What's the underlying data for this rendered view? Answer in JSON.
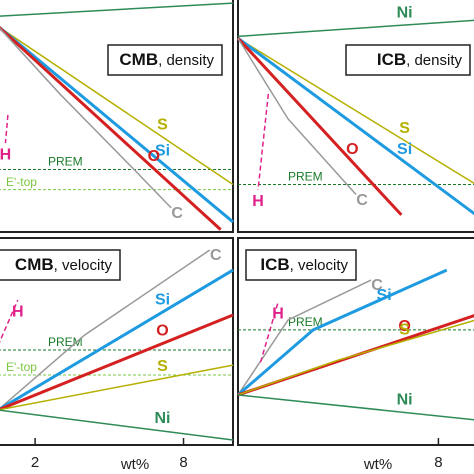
{
  "chart_data": [
    {
      "type": "line",
      "title_main": "CMB",
      "title_rest": ", density",
      "xlim": [
        0.5,
        10
      ],
      "ylim": [
        0,
        100
      ],
      "series": [
        {
          "name": "Ni",
          "color": "#2e8b57",
          "x": [
            0.5,
            10
          ],
          "values": [
            92.2,
            97.8
          ]
        },
        {
          "name": "S",
          "color": "#b5b000",
          "x": [
            0.5,
            10
          ],
          "values": [
            87.9,
            20.3
          ]
        },
        {
          "name": "Si",
          "color": "#1e9be0",
          "x": [
            0.5,
            10
          ],
          "values": [
            87.9,
            4.3
          ]
        },
        {
          "name": "O",
          "color": "#d42020",
          "x": [
            0.5,
            9.5
          ],
          "values": [
            87.9,
            1
          ]
        },
        {
          "name": "C",
          "color": "#999999",
          "x": [
            0.5,
            3,
            6,
            7.5
          ],
          "values": [
            87.9,
            59,
            26.7,
            10.3
          ]
        },
        {
          "name": "H",
          "color": "#e0208a",
          "dash": true,
          "x": [
            0.9,
            0.8
          ],
          "values": [
            50,
            38
          ]
        }
      ],
      "hlines": [
        {
          "name": "PREM",
          "color": "#1a7a2a",
          "value": 26.7
        },
        {
          "name": "E'-top",
          "color": "#7ac943",
          "value": 18.1
        }
      ]
    },
    {
      "type": "line",
      "title_main": "ICB",
      "title_rest": ", density",
      "xlim": [
        0,
        9.5
      ],
      "ylim": [
        0,
        100
      ],
      "series": [
        {
          "name": "Ni",
          "color": "#2e8b57",
          "x": [
            0,
            9.5
          ],
          "values": [
            83.6,
            90.5
          ]
        },
        {
          "name": "S",
          "color": "#b5b000",
          "x": [
            0,
            9.5
          ],
          "values": [
            82.8,
            20.3
          ]
        },
        {
          "name": "Si",
          "color": "#1e9be0",
          "x": [
            0,
            9.5
          ],
          "values": [
            82.8,
            7.3
          ]
        },
        {
          "name": "O",
          "color": "#d42020",
          "x": [
            0,
            6.52
          ],
          "values": [
            82.8,
            7.3
          ]
        },
        {
          "name": "C",
          "color": "#999999",
          "x": [
            0,
            2,
            4.71
          ],
          "values": [
            82.8,
            48.3,
            16
          ]
        },
        {
          "name": "H",
          "color": "#e0208a",
          "dash": true,
          "x": [
            1.21,
            0.8
          ],
          "values": [
            59,
            18
          ]
        }
      ],
      "hlines": [
        {
          "name": "PREM",
          "color": "#1a7a2a",
          "value": 20.3
        }
      ]
    },
    {
      "type": "line",
      "title_main": "CMB",
      "title_rest": ", velocity",
      "xlabel": "wt%",
      "xlim": [
        0.5,
        10
      ],
      "xticks": [
        2,
        8
      ],
      "ylim": [
        0,
        100
      ],
      "series": [
        {
          "name": "C",
          "color": "#999999",
          "x": [
            0.5,
            4,
            9.06
          ],
          "values": [
            16.9,
            53.1,
            94.2
          ]
        },
        {
          "name": "Si",
          "color": "#1e9be0",
          "x": [
            0.5,
            10
          ],
          "values": [
            16.9,
            84.5
          ]
        },
        {
          "name": "O",
          "color": "#d42020",
          "x": [
            0.5,
            10
          ],
          "values": [
            16.9,
            62.8
          ]
        },
        {
          "name": "S",
          "color": "#b5b000",
          "x": [
            0.5,
            10
          ],
          "values": [
            16.9,
            38.6
          ]
        },
        {
          "name": "Ni",
          "color": "#2e8b57",
          "x": [
            0.5,
            10
          ],
          "values": [
            16.9,
            2.4
          ]
        },
        {
          "name": "H",
          "color": "#e0208a",
          "dash": true,
          "x": [
            0.5,
            1.3
          ],
          "values": [
            48,
            70
          ]
        }
      ],
      "hlines": [
        {
          "name": "PREM",
          "color": "#1a7a2a",
          "value": 45.9
        },
        {
          "name": "E'-top",
          "color": "#7ac943",
          "value": 33.8
        }
      ]
    },
    {
      "type": "line",
      "title_main": "ICB",
      "title_rest": ", velocity",
      "xlabel": "wt%",
      "xlim": [
        0,
        9.5
      ],
      "xticks": [
        8
      ],
      "ylim": [
        0,
        100
      ],
      "series": [
        {
          "name": "C",
          "color": "#999999",
          "x": [
            0,
            2,
            5.31
          ],
          "values": [
            24.2,
            60.4,
            79.7
          ]
        },
        {
          "name": "Si",
          "color": "#1e9be0",
          "x": [
            0,
            3,
            8.33
          ],
          "values": [
            24.2,
            55.6,
            84.5
          ]
        },
        {
          "name": "O",
          "color": "#d42020",
          "x": [
            0,
            9.5
          ],
          "values": [
            24.2,
            62.8
          ]
        },
        {
          "name": "S",
          "color": "#b5b000",
          "x": [
            0,
            4,
            9.5
          ],
          "values": [
            24.2,
            41,
            60.4
          ]
        },
        {
          "name": "Ni",
          "color": "#2e8b57",
          "x": [
            0,
            9.5
          ],
          "values": [
            24.2,
            12.1
          ]
        },
        {
          "name": "H",
          "color": "#e0208a",
          "dash": true,
          "x": [
            0.9,
            1.6
          ],
          "values": [
            40,
            69
          ]
        }
      ],
      "hlines": [
        {
          "name": "PREM",
          "color": "#1a7a2a",
          "value": 55.6
        }
      ]
    }
  ]
}
